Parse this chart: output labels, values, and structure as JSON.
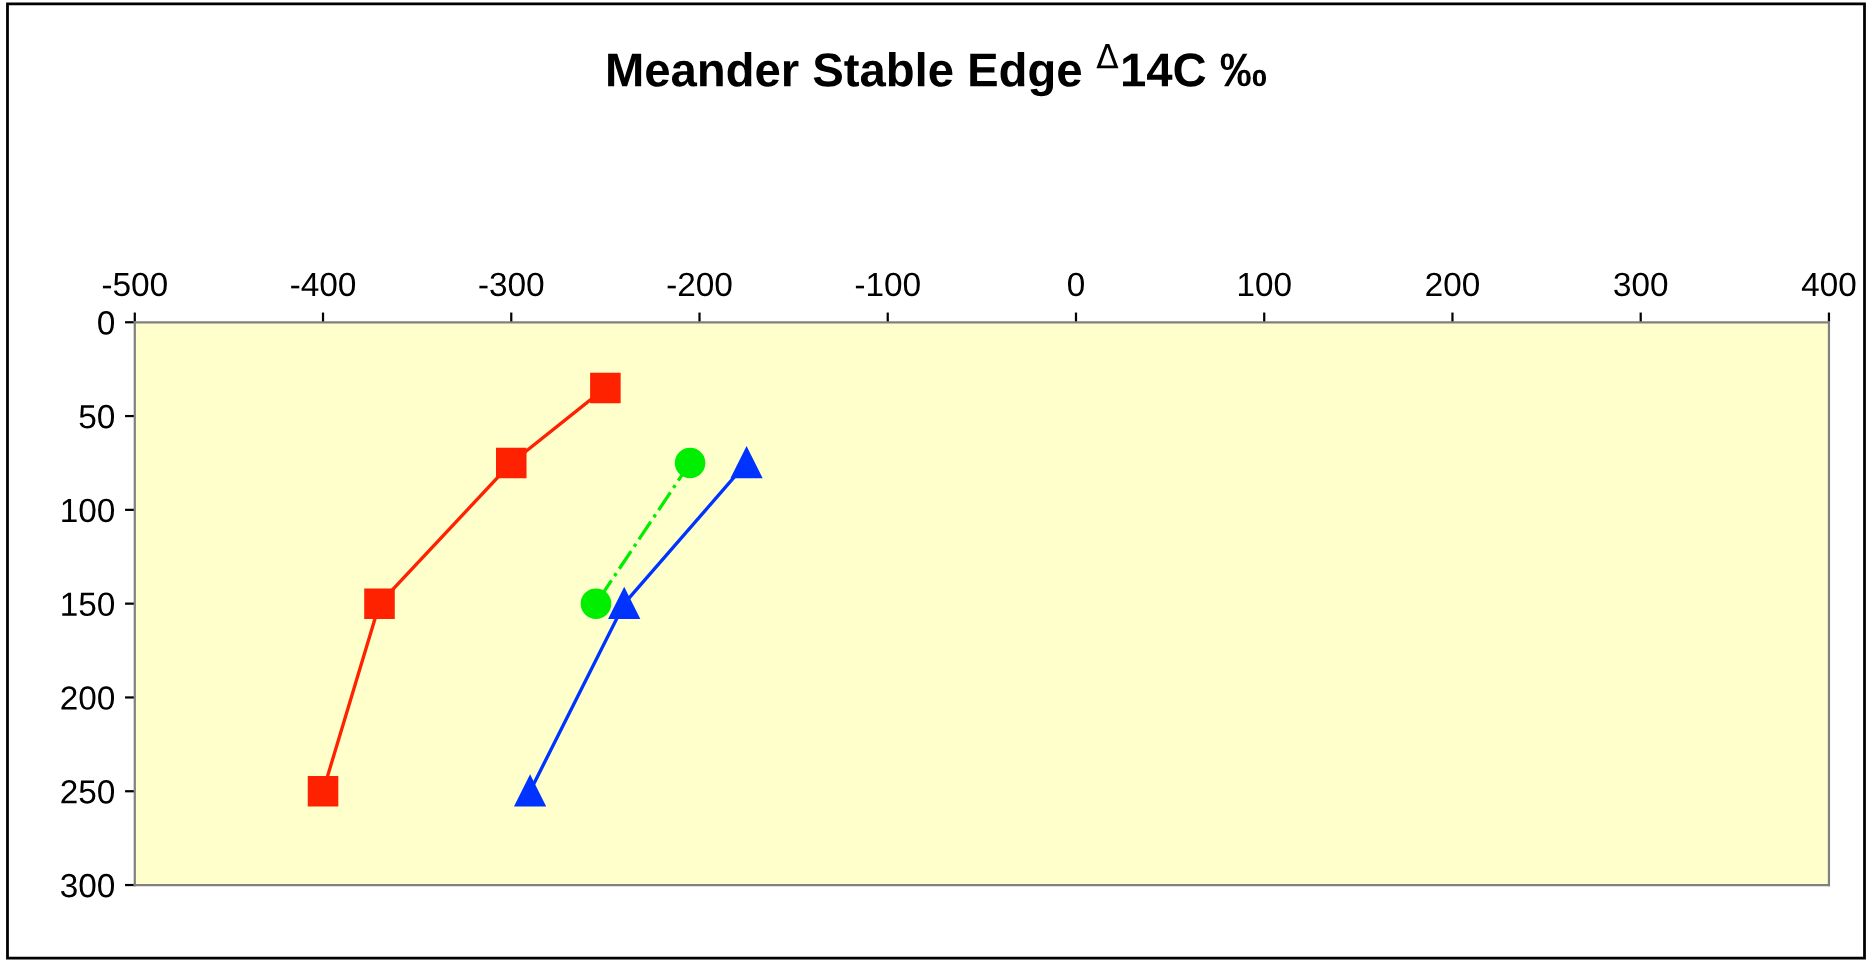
{
  "chart_data": {
    "type": "line",
    "title": "Meander Stable Edge $^{Δ}$14C ‰",
    "xlim": [
      -500,
      400
    ],
    "xticks": [
      -500,
      -400,
      -300,
      -200,
      -100,
      0,
      100,
      200,
      300,
      400
    ],
    "ylim": [
      300,
      0
    ],
    "yticks": [
      0,
      50,
      100,
      150,
      200,
      250,
      300
    ],
    "grid": false,
    "legend": false,
    "series": [
      {
        "color": "#ff2200",
        "marker": "square",
        "line_style": "solid",
        "x": [
          -250,
          -300,
          -370,
          -400
        ],
        "values": [
          35,
          75,
          150,
          250
        ]
      },
      {
        "color": "#00ee00",
        "marker": "circle",
        "line_style": "dashed",
        "x": [
          -205,
          -255
        ],
        "values": [
          75,
          150
        ]
      },
      {
        "color": "#0033ff",
        "marker": "triangle",
        "line_style": "solid",
        "x": [
          -175,
          -240,
          -290
        ],
        "values": [
          75,
          150,
          250
        ]
      }
    ]
  }
}
